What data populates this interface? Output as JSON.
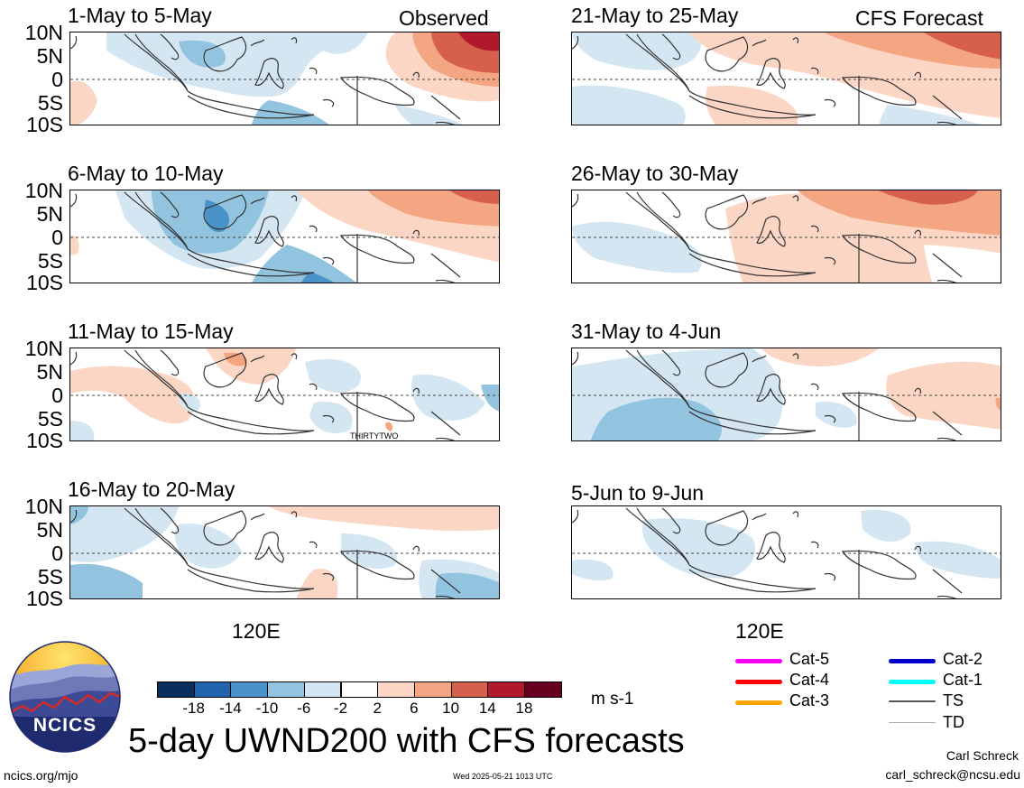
{
  "header": {
    "left_label": "Observed",
    "right_label": "CFS Forecast"
  },
  "latitude_labels": [
    "10N",
    "5N",
    "0",
    "5S",
    "10S"
  ],
  "longitude_label": "120E",
  "panels": [
    {
      "id": "p1",
      "title": "1-May to 5-May",
      "column": "observed"
    },
    {
      "id": "p2",
      "title": "6-May to 10-May",
      "column": "observed"
    },
    {
      "id": "p3",
      "title": "11-May to 15-May",
      "column": "observed",
      "annotation": "THIRTYTWO"
    },
    {
      "id": "p4",
      "title": "16-May to 20-May",
      "column": "observed"
    },
    {
      "id": "p5",
      "title": "21-May to 25-May",
      "column": "forecast"
    },
    {
      "id": "p6",
      "title": "26-May to 30-May",
      "column": "forecast"
    },
    {
      "id": "p7",
      "title": "31-May to 4-Jun",
      "column": "forecast"
    },
    {
      "id": "p8",
      "title": "5-Jun to 9-Jun",
      "column": "forecast"
    }
  ],
  "colorbar": {
    "units": "m s-1",
    "ticks": [
      "-18",
      "-14",
      "-10",
      "-6",
      "-2",
      "2",
      "6",
      "10",
      "14",
      "18"
    ],
    "colors": [
      "#0b2f5c",
      "#1f64ac",
      "#4a93c8",
      "#92c3df",
      "#d4e6f2",
      "#ffffff",
      "#fcd6c4",
      "#f4a582",
      "#d6604d",
      "#b2182b",
      "#67001f"
    ]
  },
  "legend": [
    {
      "label": "Cat-5",
      "color": "#ff00ff"
    },
    {
      "label": "Cat-4",
      "color": "#ff0000"
    },
    {
      "label": "Cat-3",
      "color": "#ffa500"
    },
    {
      "label": "Cat-2",
      "color": "#0000cd"
    },
    {
      "label": "Cat-1",
      "color": "#00ffff"
    },
    {
      "label": "TS",
      "color": "#555555"
    },
    {
      "label": "TD",
      "color": "#aaaaaa"
    }
  ],
  "logo": {
    "text": "NCICS"
  },
  "title": "5-day UWND200 with CFS forecasts",
  "footer": {
    "url": "ncics.org/mjo",
    "timestamp": "Wed 2025-05-21 1013 UTC",
    "author": "Carl Schreck",
    "email": "carl_schreck@ncsu.edu"
  }
}
